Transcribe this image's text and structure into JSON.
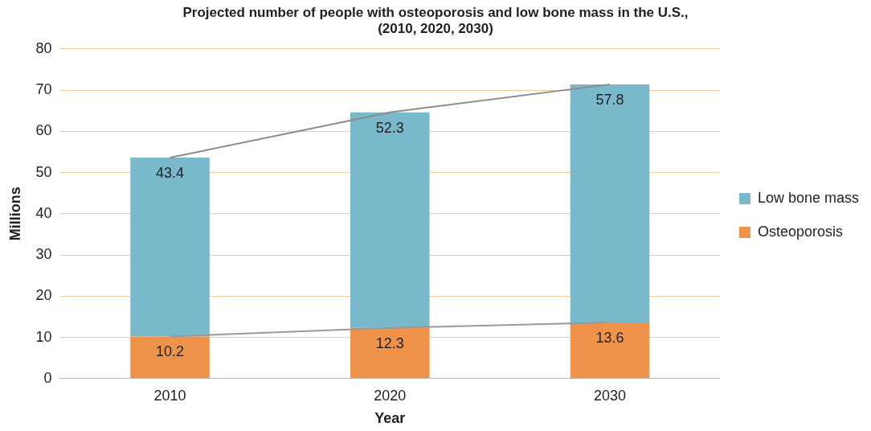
{
  "chart_data": {
    "type": "bar",
    "stacked": true,
    "title": "Projected number of people with osteoporosis and low bone mass in the U.S.,\n(2010, 2020, 2030)",
    "xlabel": "Year",
    "ylabel": "Millions",
    "categories": [
      "2010",
      "2020",
      "2030"
    ],
    "series": [
      {
        "name": "Osteoporosis",
        "color": "#f0934a",
        "values": [
          10.2,
          12.3,
          13.6
        ],
        "value_labels": [
          "10.2",
          "12.3",
          "13.6"
        ]
      },
      {
        "name": "Low bone mass",
        "color": "#7ab8cc",
        "values": [
          43.4,
          52.3,
          57.8
        ],
        "value_labels": [
          "43.4",
          "52.3",
          "57.8"
        ]
      },
      {
        "type": "line",
        "color": "#999999",
        "values": [
          10.2,
          12.3,
          13.6
        ]
      },
      {
        "type": "line",
        "color": "#8c8c8c",
        "values": [
          53.6,
          64.6,
          71.4
        ]
      }
    ],
    "ylim": [
      0,
      80
    ],
    "yticks": [
      0,
      10,
      20,
      30,
      40,
      50,
      60,
      70,
      80
    ],
    "grid": "y",
    "legend": "right",
    "marker": "none",
    "line_style": "solid"
  }
}
